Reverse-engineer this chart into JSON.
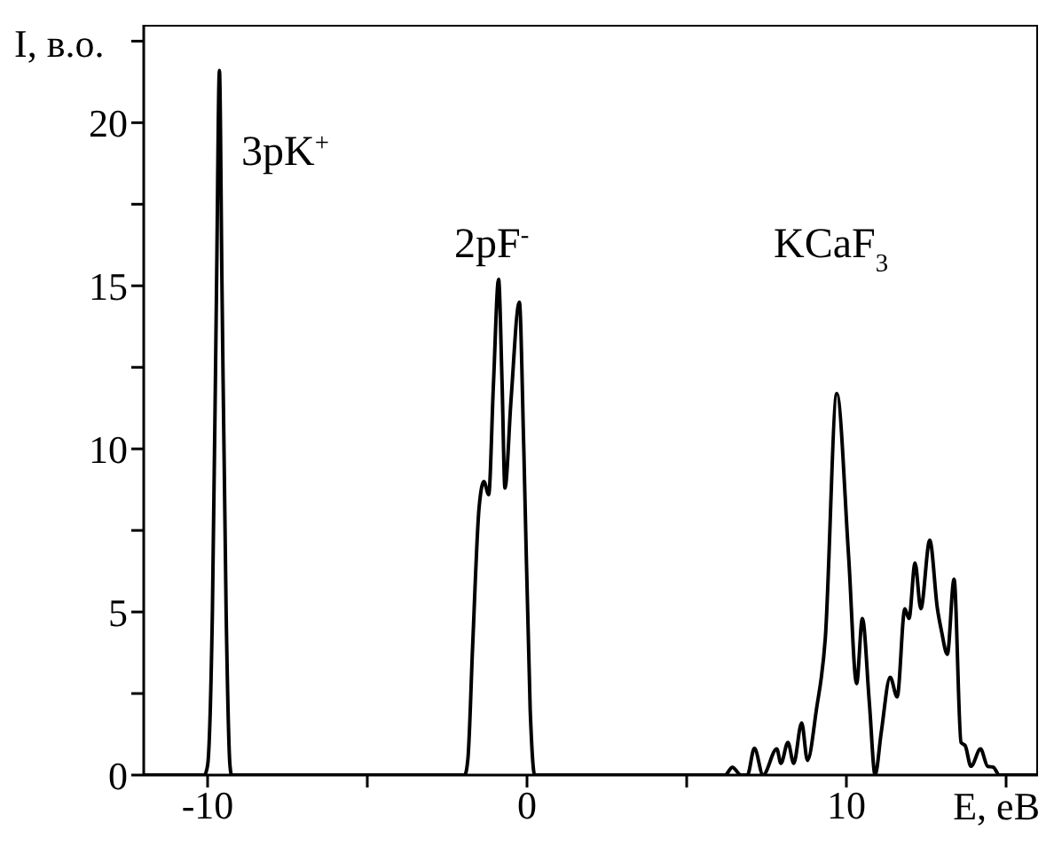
{
  "chart_data": {
    "type": "line",
    "xlabel": "E, eB",
    "ylabel": "I, в.о.",
    "xlim": [
      -12,
      16
    ],
    "ylim": [
      0,
      23
    ],
    "xticks": [
      -10,
      {
        "value": -5,
        "label": null
      },
      0,
      {
        "value": 5,
        "label": null
      },
      10,
      {
        "value": 15,
        "label": null
      }
    ],
    "yticks": [
      0,
      {
        "value": 2.5,
        "label": null
      },
      5,
      {
        "value": 7.5,
        "label": null
      },
      10,
      {
        "value": 12.5,
        "label": null
      },
      15,
      {
        "value": 17.5,
        "label": null
      },
      20,
      {
        "value": 22.5,
        "label": null
      }
    ],
    "grid": false,
    "legend": false,
    "marker": "none",
    "line_style": "solid",
    "annotations": [
      "3pK$^{+}$",
      "2pF$^{-}$",
      "KCaF$_{3}$"
    ],
    "series": [
      {
        "color": "#000000",
        "x": [
          -12,
          -10.1,
          -10.0,
          -9.85,
          -9.72,
          -9.63,
          -9.55,
          -9.42,
          -9.3,
          -9.25,
          -1.95,
          -1.85,
          -1.7,
          -1.5,
          -1.35,
          -1.2,
          -1.05,
          -0.89,
          -0.78,
          -0.69,
          -0.5,
          -0.24,
          -0.1,
          0.1,
          0.24,
          6.2,
          6.43,
          6.7,
          6.9,
          7.12,
          7.39,
          7.82,
          7.95,
          8.17,
          8.35,
          8.6,
          8.78,
          9.06,
          9.34,
          9.7,
          10.07,
          10.32,
          10.5,
          10.72,
          10.9,
          11.09,
          11.37,
          11.59,
          11.83,
          11.96,
          12.15,
          12.33,
          12.61,
          12.85,
          12.98,
          13.16,
          13.37,
          13.59,
          13.72,
          13.9,
          14.2,
          14.42,
          14.6,
          14.79,
          16
        ],
        "values": [
          0,
          0,
          0.3,
          5,
          15,
          21.6,
          15,
          5,
          0.3,
          0,
          0,
          0.5,
          4,
          8.2,
          9.0,
          8.6,
          12,
          15.2,
          12,
          8.8,
          11.5,
          14.5,
          10,
          2,
          0,
          0,
          0.24,
          0,
          0,
          0.82,
          0,
          0.8,
          0.36,
          1.0,
          0.36,
          1.6,
          0.45,
          2.0,
          4.2,
          11.7,
          6.7,
          2.8,
          4.8,
          2.2,
          0,
          1.3,
          3.0,
          2.4,
          5.1,
          4.8,
          6.5,
          5.1,
          7.2,
          5.1,
          4.4,
          3.7,
          6.0,
          1.0,
          0.9,
          0.27,
          0.8,
          0.27,
          0.24,
          0,
          0
        ]
      }
    ]
  }
}
